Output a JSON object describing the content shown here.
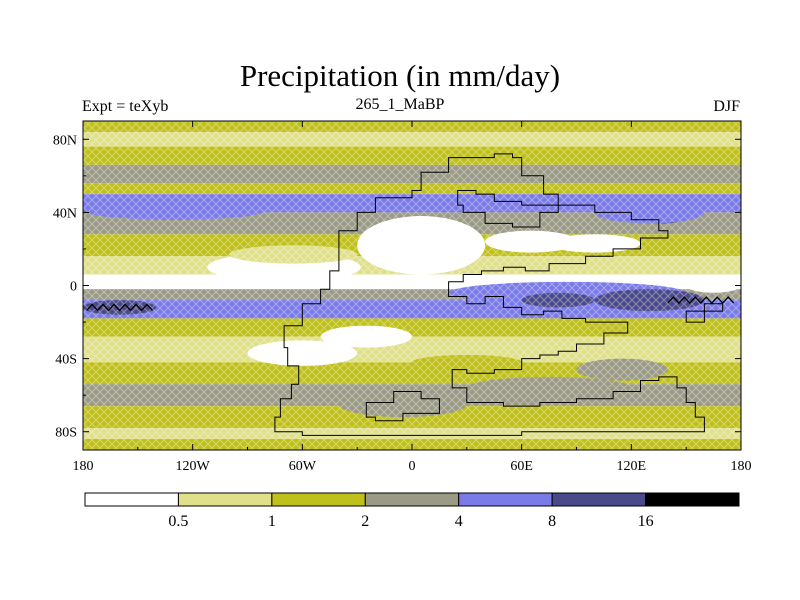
{
  "title": "Precipitation (in mm/day)",
  "subtitle_left": "Expt = teXyb",
  "subtitle_center": "265_1_MaBP",
  "subtitle_right": "DJF",
  "lat_ticks": [
    {
      "label": "80N",
      "lat": 80
    },
    {
      "label": "40N",
      "lat": 40
    },
    {
      "label": "0",
      "lat": 0
    },
    {
      "label": "40S",
      "lat": -40
    },
    {
      "label": "80S",
      "lat": -80
    }
  ],
  "lon_ticks": [
    {
      "label": "180",
      "lon": -180
    },
    {
      "label": "120W",
      "lon": -120
    },
    {
      "label": "60W",
      "lon": -60
    },
    {
      "label": "0",
      "lon": 0
    },
    {
      "label": "60E",
      "lon": 60
    },
    {
      "label": "120E",
      "lon": 120
    },
    {
      "label": "180",
      "lon": 180
    }
  ],
  "colorbar": {
    "colors": [
      "#ffffff",
      "#e0e08a",
      "#c0c01c",
      "#9a9a86",
      "#7a7ae8",
      "#4a4a8a",
      "#000000"
    ],
    "labels": [
      "0.5",
      "1",
      "2",
      "4",
      "8",
      "16"
    ]
  },
  "bands": [
    {
      "lat0": 90,
      "lat1": 84,
      "color": "#c0c01c"
    },
    {
      "lat0": 84,
      "lat1": 76,
      "color": "#e0e08a"
    },
    {
      "lat0": 76,
      "lat1": 66,
      "color": "#c0c01c"
    },
    {
      "lat0": 66,
      "lat1": 56,
      "color": "#9a9a86"
    },
    {
      "lat0": 56,
      "lat1": 50,
      "color": "#c0c01c"
    },
    {
      "lat0": 50,
      "lat1": 40,
      "color": "#7a7ae8"
    },
    {
      "lat0": 40,
      "lat1": 28,
      "color": "#9a9a86"
    },
    {
      "lat0": 28,
      "lat1": 16,
      "color": "#c0c01c"
    },
    {
      "lat0": 16,
      "lat1": 6,
      "color": "#e0e08a"
    },
    {
      "lat0": 6,
      "lat1": -2,
      "color": "#ffffff"
    },
    {
      "lat0": -2,
      "lat1": -8,
      "color": "#9a9a86"
    },
    {
      "lat0": -8,
      "lat1": -18,
      "color": "#7a7ae8"
    },
    {
      "lat0": -18,
      "lat1": -28,
      "color": "#c0c01c"
    },
    {
      "lat0": -28,
      "lat1": -42,
      "color": "#e0e08a"
    },
    {
      "lat0": -42,
      "lat1": -54,
      "color": "#c0c01c"
    },
    {
      "lat0": -54,
      "lat1": -66,
      "color": "#9a9a86"
    },
    {
      "lat0": -66,
      "lat1": -78,
      "color": "#c0c01c"
    },
    {
      "lat0": -78,
      "lat1": -84,
      "color": "#e0e08a"
    },
    {
      "lat0": -84,
      "lat1": -90,
      "color": "#c0c01c"
    }
  ],
  "patches": [
    {
      "lon0": -112,
      "lon1": -28,
      "lat0": 18,
      "lat1": 2,
      "color": "#ffffff"
    },
    {
      "lon0": -100,
      "lon1": -30,
      "lat0": 22,
      "lat1": 12,
      "color": "#e0e08a"
    },
    {
      "lon0": -180,
      "lon1": -80,
      "lat0": 46,
      "lat1": 36,
      "color": "#7a7ae8"
    },
    {
      "lon0": -30,
      "lon1": 40,
      "lat0": 38,
      "lat1": 6,
      "color": "#ffffff"
    },
    {
      "lon0": 40,
      "lon1": 90,
      "lat0": 30,
      "lat1": 18,
      "color": "#ffffff"
    },
    {
      "lon0": 75,
      "lon1": 125,
      "lat0": 28,
      "lat1": 18,
      "color": "#ffffff"
    },
    {
      "lon0": 20,
      "lon1": 150,
      "lat0": 2,
      "lat1": -10,
      "color": "#7a7ae8"
    },
    {
      "lon0": 100,
      "lon1": 160,
      "lat0": -2,
      "lat1": -14,
      "color": "#4a4a8a"
    },
    {
      "lon0": 60,
      "lon1": 100,
      "lat0": -4,
      "lat1": -12,
      "color": "#4a4a8a"
    },
    {
      "lon0": 125,
      "lon1": 150,
      "lat0": 40,
      "lat1": 34,
      "color": "#4a4a8a"
    },
    {
      "lon0": 100,
      "lon1": 160,
      "lat0": 46,
      "lat1": 34,
      "color": "#7a7ae8"
    },
    {
      "lon0": -90,
      "lon1": -30,
      "lat0": -30,
      "lat1": -44,
      "color": "#ffffff"
    },
    {
      "lon0": -50,
      "lon1": 0,
      "lat0": -22,
      "lat1": -34,
      "color": "#ffffff"
    },
    {
      "lon0": -180,
      "lon1": -140,
      "lat0": -8,
      "lat1": -16,
      "color": "#4a4a8a"
    },
    {
      "lon0": -40,
      "lon1": 30,
      "lat0": -58,
      "lat1": -72,
      "color": "#9a9a86"
    },
    {
      "lon0": 30,
      "lon1": 120,
      "lat0": -50,
      "lat1": -62,
      "color": "#9a9a86"
    },
    {
      "lon0": 90,
      "lon1": 140,
      "lat0": -40,
      "lat1": -52,
      "color": "#9a9a86"
    },
    {
      "lon0": 0,
      "lon1": 60,
      "lat0": -38,
      "lat1": -46,
      "color": "#c0c01c"
    },
    {
      "lon0": 150,
      "lon1": 180,
      "lat0": 4,
      "lat1": -4,
      "color": "#ffffff"
    }
  ]
}
